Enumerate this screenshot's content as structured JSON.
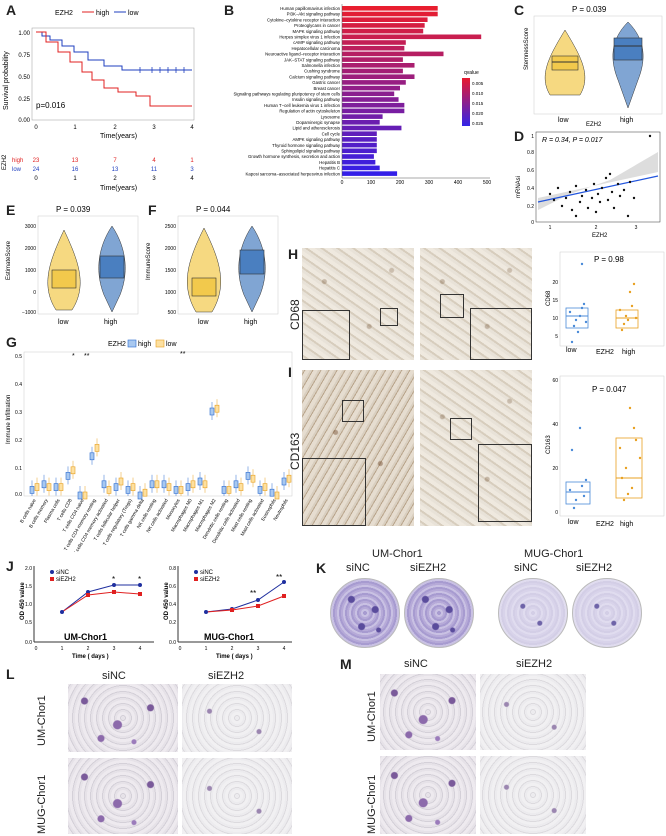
{
  "panels": [
    "A",
    "B",
    "C",
    "D",
    "E",
    "F",
    "G",
    "H",
    "I",
    "J",
    "K",
    "L",
    "M"
  ],
  "A": {
    "legend_title": "EZH2",
    "legend_high": "high",
    "legend_low": "low",
    "ylabel": "Survival probability",
    "yticks": [
      "1.00",
      "0.75",
      "0.50",
      "0.25",
      "0.00"
    ],
    "xticks": [
      "0",
      "1",
      "2",
      "3",
      "4"
    ],
    "xlabel": "Time(years)",
    "pvalue": "p=0.016",
    "risk_label": "EZH2",
    "risk_high_label": "high",
    "risk_low_label": "low",
    "risk_high": [
      "23",
      "13",
      "7",
      "4",
      "1"
    ],
    "risk_low": [
      "24",
      "16",
      "13",
      "11",
      "3"
    ],
    "risk_xlabel": "Time(years)"
  },
  "B": {
    "pathways": [
      "Human papillomavirus infection",
      "PI3K−Akt signaling pathway",
      "Cytokine−cytokine receptor interaction",
      "Proteoglycans in cancer",
      "MAPK signaling pathway",
      "Herpes simplex virus 1 infection",
      "cAMP signaling pathway",
      "Hepatocellular carcinoma",
      "Neuroactive ligand−receptor interaction",
      "JAK−STAT signaling pathway",
      "Salmonella infection",
      "Cushing syndrome",
      "Calcium signaling pathway",
      "Gastric cancer",
      "Breast cancer",
      "Signaling pathways regulating pluripotency of stem cells",
      "Insulin signaling pathway",
      "Human T−cell leukemia virus 1 infection",
      "Regulation of actin cytoskeleton",
      "Lysosome",
      "Dopaminergic synapse",
      "Lipid and atherosclerosis",
      "Cell cycle",
      "AMPK signaling pathway",
      "Thyroid hormone signaling pathway",
      "Sphingolipid signaling pathway",
      "Growth hormone synthesis, secretion and action",
      "Hepatitis B",
      "Hepatitis C",
      "Kaposi sarcoma−associated herpesvirus infection"
    ],
    "xticks": [
      "0",
      "100",
      "200",
      "300",
      "400",
      "500"
    ],
    "legend_title": "qvalue",
    "legend_ticks": [
      "0.005",
      "0.010",
      "0.015",
      "0.020",
      "0.025"
    ]
  },
  "C": {
    "pvalue": "P = 0.039",
    "ylabel": "StemnessScore",
    "xlabel": "EZH2",
    "groups": [
      "low",
      "high"
    ]
  },
  "D": {
    "stat": "R = 0.34, P = 0.017",
    "ylabel": "mRNAsi",
    "xlabel": "EZH2",
    "yticks": [
      "1",
      "0.8",
      "0.6",
      "0.4",
      "0.2",
      "0"
    ],
    "xticks": [
      "1",
      "2",
      "3"
    ]
  },
  "E": {
    "pvalue": "P = 0.039",
    "ylabel": "EstimateScore",
    "groups": [
      "low",
      "high"
    ],
    "yticks": [
      "3000",
      "2000",
      "1000",
      "0",
      "−1000"
    ]
  },
  "F": {
    "pvalue": "P = 0.044",
    "ylabel": "ImmuneScore",
    "groups": [
      "low",
      "high"
    ],
    "yticks": [
      "2500",
      "2000",
      "1500",
      "1000",
      "500"
    ]
  },
  "G": {
    "legend_title": "EZH2",
    "legend_high": "high",
    "legend_low": "low",
    "ylabel": "Immune Infiltration",
    "yticks": [
      "0.5",
      "0.4",
      "0.3",
      "0.2",
      "0.1",
      "0.0"
    ],
    "cells": [
      "B cells naive",
      "B cells memory",
      "Plasma cells",
      "T cells CD8",
      "T cells CD4 naive",
      "T cells CD4 memory resting",
      "T cells CD4 memory activated",
      "T cells follicular helper",
      "T cells regulatory (Tregs)",
      "T cells gamma delta",
      "NK cells resting",
      "NK cells activated",
      "Monocytes",
      "Macrophages M0",
      "Macrophages M1",
      "Macrophages M2",
      "Dendritic cells resting",
      "Dendritic cells activated",
      "Mast cells resting",
      "Mast cells activated",
      "Eosinophils",
      "Neutrophils"
    ],
    "sig1": "*",
    "sig2": "**",
    "sig3": "**"
  },
  "H": {
    "marker": "CD68",
    "pvalue": "P = 0.98",
    "ylabel": "CD68",
    "groups": [
      "low",
      "high"
    ],
    "xlabel": "EZH2",
    "yticks": [
      "20",
      "15",
      "10",
      "5"
    ]
  },
  "I": {
    "marker": "CD163",
    "pvalue": "P = 0.047",
    "ylabel": "CD163",
    "groups": [
      "low",
      "high"
    ],
    "xlabel": "EZH2",
    "yticks": [
      "60",
      "40",
      "20",
      "0"
    ]
  },
  "J": {
    "left_title": "UM-Chor1",
    "right_title": "MUG-Chor1",
    "ylabel": "OD 450 value",
    "xlabel": "Time ( days )",
    "legend_nc": "siNC",
    "legend_ezh2": "siEZH2",
    "xticks": [
      "0",
      "1",
      "2",
      "3",
      "4"
    ],
    "left_yticks": [
      "2.0",
      "1.5",
      "1.0",
      "0.5",
      "0.0"
    ],
    "right_yticks": [
      "0.8",
      "0.6",
      "0.4",
      "0.2",
      "0.0"
    ],
    "left_sig": [
      "*",
      "*"
    ],
    "right_sig": [
      "**",
      "**"
    ]
  },
  "K": {
    "left_title": "UM-Chor1",
    "right_title": "MUG-Chor1",
    "col1": "siNC",
    "col2": "siEZH2",
    "col3": "siNC",
    "col4": "siEZH2"
  },
  "L": {
    "col1": "siNC",
    "col2": "siEZH2",
    "row1": "UM-Chor1",
    "row2": "MUG-Chor1"
  },
  "M": {
    "col1": "siNC",
    "col2": "siEZH2",
    "row1": "UM-Chor1",
    "row2": "MUG-Chor1"
  },
  "colors": {
    "high": "#1f3fbf",
    "low": "#e02020",
    "violin_low": "#f2c94c",
    "violin_high": "#4a7fc0"
  }
}
